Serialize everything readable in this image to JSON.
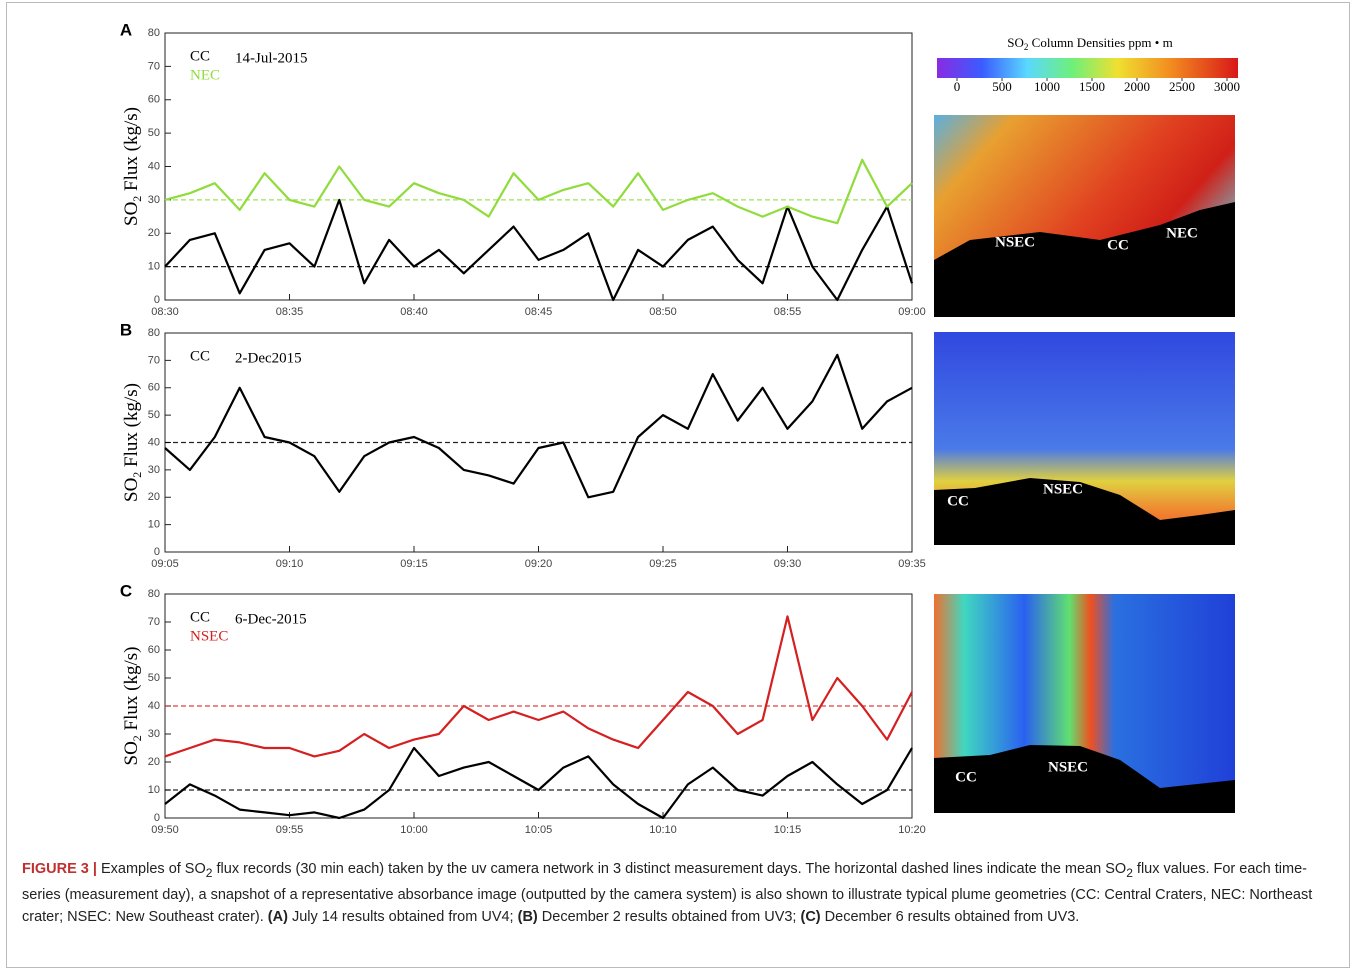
{
  "chart_data": [
    {
      "type": "line",
      "panel": "A",
      "annotation": "14-Jul-2015",
      "ylabel": [
        "SO",
        "2",
        " Flux (kg/s)"
      ],
      "x": [
        "08:30",
        "08:31",
        "08:32",
        "08:33",
        "08:34",
        "08:35",
        "08:36",
        "08:37",
        "08:38",
        "08:39",
        "08:40",
        "08:41",
        "08:42",
        "08:43",
        "08:44",
        "08:45",
        "08:46",
        "08:47",
        "08:48",
        "08:49",
        "08:50",
        "08:51",
        "08:52",
        "08:53",
        "08:54",
        "08:55",
        "08:56",
        "08:57",
        "08:58",
        "08:59",
        "09:00"
      ],
      "xlim": [
        "08:30",
        "09:00"
      ],
      "xticks": [
        "08:30",
        "08:35",
        "08:40",
        "08:45",
        "08:50",
        "08:55",
        "09:00"
      ],
      "ylim": [
        0,
        80
      ],
      "yticks": [
        0,
        10,
        20,
        30,
        40,
        50,
        60,
        70,
        80
      ],
      "series": [
        {
          "name": "CC",
          "color": "#000000",
          "mean": 10,
          "values": [
            10,
            18,
            20,
            2,
            15,
            17,
            10,
            30,
            5,
            18,
            10,
            15,
            8,
            15,
            22,
            12,
            15,
            20,
            0,
            15,
            10,
            18,
            22,
            12,
            5,
            28,
            10,
            0,
            15,
            28,
            5
          ]
        },
        {
          "name": "NEC",
          "color": "#8fdc3c",
          "mean": 30,
          "values": [
            30,
            32,
            35,
            27,
            38,
            30,
            28,
            40,
            30,
            28,
            35,
            32,
            30,
            25,
            38,
            30,
            33,
            35,
            28,
            38,
            27,
            30,
            32,
            28,
            25,
            28,
            25,
            23,
            42,
            28,
            35
          ]
        }
      ]
    },
    {
      "type": "line",
      "panel": "B",
      "annotation": "2-Dec2015",
      "ylabel": [
        "SO",
        "2",
        " Flux (kg/s)"
      ],
      "x": [
        "09:05",
        "09:06",
        "09:07",
        "09:08",
        "09:09",
        "09:10",
        "09:11",
        "09:12",
        "09:13",
        "09:14",
        "09:15",
        "09:16",
        "09:17",
        "09:18",
        "09:19",
        "09:20",
        "09:21",
        "09:22",
        "09:23",
        "09:24",
        "09:25",
        "09:26",
        "09:27",
        "09:28",
        "09:29",
        "09:30",
        "09:31",
        "09:32",
        "09:33",
        "09:34",
        "09:35"
      ],
      "xlim": [
        "09:05",
        "09:35"
      ],
      "xticks": [
        "09:05",
        "09:10",
        "09:15",
        "09:20",
        "09:25",
        "09:30",
        "09:35"
      ],
      "ylim": [
        0,
        80
      ],
      "yticks": [
        0,
        10,
        20,
        30,
        40,
        50,
        60,
        70,
        80
      ],
      "series": [
        {
          "name": "CC",
          "color": "#000000",
          "mean": 40,
          "values": [
            38,
            30,
            42,
            60,
            42,
            40,
            35,
            22,
            35,
            40,
            42,
            38,
            30,
            28,
            25,
            38,
            40,
            20,
            22,
            42,
            50,
            45,
            65,
            48,
            60,
            45,
            55,
            72,
            45,
            55,
            60
          ]
        }
      ]
    },
    {
      "type": "line",
      "panel": "C",
      "annotation": "6-Dec-2015",
      "ylabel": [
        "SO",
        "2",
        " Flux (kg/s)"
      ],
      "x": [
        "09:50",
        "09:51",
        "09:52",
        "09:53",
        "09:54",
        "09:55",
        "09:56",
        "09:57",
        "09:58",
        "09:59",
        "10:00",
        "10:01",
        "10:02",
        "10:03",
        "10:04",
        "10:05",
        "10:06",
        "10:07",
        "10:08",
        "10:09",
        "10:10",
        "10:11",
        "10:12",
        "10:13",
        "10:14",
        "10:15",
        "10:16",
        "10:17",
        "10:18",
        "10:19",
        "10:20"
      ],
      "xlim": [
        "09:50",
        "10:20"
      ],
      "xticks": [
        "09:50",
        "09:55",
        "10:00",
        "10:05",
        "10:10",
        "10:15",
        "10:20"
      ],
      "ylim": [
        0,
        80
      ],
      "yticks": [
        0,
        10,
        20,
        30,
        40,
        50,
        60,
        70,
        80
      ],
      "series": [
        {
          "name": "CC",
          "color": "#000000",
          "mean": 10,
          "values": [
            5,
            12,
            8,
            3,
            2,
            1,
            2,
            0,
            3,
            10,
            25,
            15,
            18,
            20,
            15,
            10,
            18,
            22,
            12,
            5,
            0,
            12,
            18,
            10,
            8,
            15,
            20,
            12,
            5,
            10,
            25
          ]
        },
        {
          "name": "NSEC",
          "color": "#d42020",
          "mean": 40,
          "values": [
            22,
            25,
            28,
            27,
            25,
            25,
            22,
            24,
            30,
            25,
            28,
            30,
            40,
            35,
            38,
            35,
            38,
            32,
            28,
            25,
            35,
            45,
            40,
            30,
            35,
            72,
            35,
            50,
            40,
            28,
            45
          ]
        }
      ]
    }
  ],
  "colorbar": {
    "title": [
      "SO",
      "2",
      " Column Densities ppm • m"
    ],
    "lim": [
      0,
      3000
    ],
    "ticks": [
      0,
      500,
      1000,
      1500,
      2000,
      2500,
      3000
    ]
  },
  "images": [
    {
      "labels": [
        "NSEC",
        "CC",
        "NEC"
      ]
    },
    {
      "labels": [
        "CC",
        "NSEC"
      ]
    },
    {
      "labels": [
        "CC",
        "NSEC"
      ]
    }
  ],
  "caption": [
    "FIGURE 3 |",
    " Examples of SO",
    "2",
    " flux records (30 min each) taken by the uv camera network in 3 distinct measurement days. The horizontal dashed lines indicate the mean SO",
    "2",
    " flux values. For each time-series (measurement day), a snapshot of a representative absorbance image (outputted by the camera system) is also shown to illustrate typical plume geometries (CC: Central Craters, NEC: Northeast crater; NSEC: New Southeast crater).",
    " (A)",
    " July 14 results obtained from UV4;",
    " (B)",
    " December 2 results obtained from UV3;",
    " (C)",
    " December 6 results obtained from UV3."
  ]
}
